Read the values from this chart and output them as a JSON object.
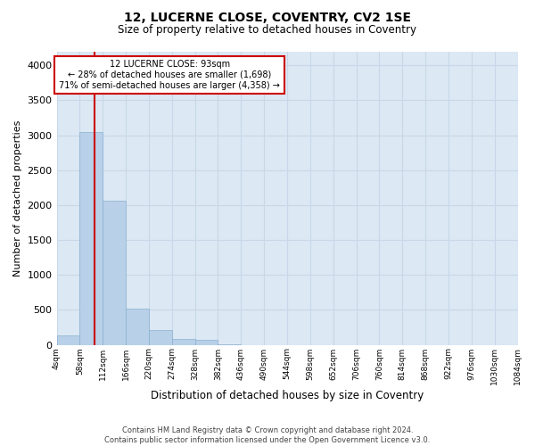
{
  "title": "12, LUCERNE CLOSE, COVENTRY, CV2 1SE",
  "subtitle": "Size of property relative to detached houses in Coventry",
  "xlabel": "Distribution of detached houses by size in Coventry",
  "ylabel": "Number of detached properties",
  "footer_line1": "Contains HM Land Registry data © Crown copyright and database right 2024.",
  "footer_line2": "Contains public sector information licensed under the Open Government Licence v3.0.",
  "annotation_line1": "12 LUCERNE CLOSE: 93sqm",
  "annotation_line2": "← 28% of detached houses are smaller (1,698)",
  "annotation_line3": "71% of semi-detached houses are larger (4,358) →",
  "bar_color": "#b8d0e8",
  "bar_edge_color": "#8ab0d0",
  "grid_color": "#c8d8e8",
  "background_color": "#dce8f4",
  "property_line_color": "#cc0000",
  "property_value": 93,
  "bin_edges": [
    4,
    58,
    112,
    166,
    220,
    274,
    328,
    382,
    436,
    490,
    544,
    598,
    652,
    706,
    760,
    814,
    868,
    922,
    976,
    1030,
    1084
  ],
  "bin_labels": [
    "4sqm",
    "58sqm",
    "112sqm",
    "166sqm",
    "220sqm",
    "274sqm",
    "328sqm",
    "382sqm",
    "436sqm",
    "490sqm",
    "544sqm",
    "598sqm",
    "652sqm",
    "706sqm",
    "760sqm",
    "814sqm",
    "868sqm",
    "922sqm",
    "976sqm",
    "1030sqm",
    "1084sqm"
  ],
  "counts": [
    130,
    3050,
    2060,
    520,
    210,
    80,
    65,
    10,
    0,
    0,
    0,
    0,
    0,
    0,
    0,
    0,
    0,
    0,
    0,
    0
  ],
  "ylim": [
    0,
    4200
  ],
  "yticks": [
    0,
    500,
    1000,
    1500,
    2000,
    2500,
    3000,
    3500,
    4000
  ]
}
